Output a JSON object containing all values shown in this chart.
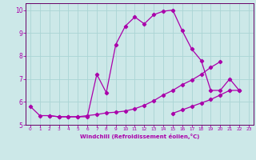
{
  "title": "",
  "xlabel": "Windchill (Refroidissement éolien,°C)",
  "ylabel": "",
  "bg_color": "#cce8e8",
  "line_color": "#aa00aa",
  "grid_color": "#aad4d4",
  "spine_color": "#660066",
  "xlim": [
    -0.5,
    23.5
  ],
  "ylim": [
    5,
    10.3
  ],
  "yticks": [
    5,
    6,
    7,
    8,
    9,
    10
  ],
  "xticks": [
    0,
    1,
    2,
    3,
    4,
    5,
    6,
    7,
    8,
    9,
    10,
    11,
    12,
    13,
    14,
    15,
    16,
    17,
    18,
    19,
    20,
    21,
    22,
    23
  ],
  "line1_x": [
    0,
    1,
    2,
    3,
    4,
    5,
    6,
    7,
    8,
    9,
    10,
    11,
    12,
    13,
    14,
    15,
    16,
    17,
    18,
    19,
    20,
    21,
    22
  ],
  "line1_y": [
    5.8,
    5.4,
    5.4,
    5.35,
    5.35,
    5.35,
    5.35,
    7.2,
    6.4,
    8.5,
    9.3,
    9.7,
    9.4,
    9.8,
    9.95,
    10.0,
    9.1,
    8.3,
    7.8,
    6.5,
    6.5,
    7.0,
    6.5
  ],
  "line2_x": [
    2,
    3,
    4,
    5,
    6,
    7,
    8,
    9,
    10,
    11,
    12,
    13,
    14,
    15,
    16,
    17,
    18,
    19,
    20
  ],
  "line2_y": [
    5.4,
    5.35,
    5.35,
    5.35,
    5.4,
    5.45,
    5.52,
    5.55,
    5.6,
    5.7,
    5.85,
    6.05,
    6.3,
    6.5,
    6.75,
    6.95,
    7.2,
    7.5,
    7.75
  ],
  "line3_x": [
    15,
    16,
    17,
    18,
    19,
    20,
    21,
    22
  ],
  "line3_y": [
    5.5,
    5.65,
    5.8,
    5.95,
    6.1,
    6.3,
    6.5,
    6.5
  ],
  "marker": "D",
  "markersize": 2.2,
  "linewidth": 0.9
}
